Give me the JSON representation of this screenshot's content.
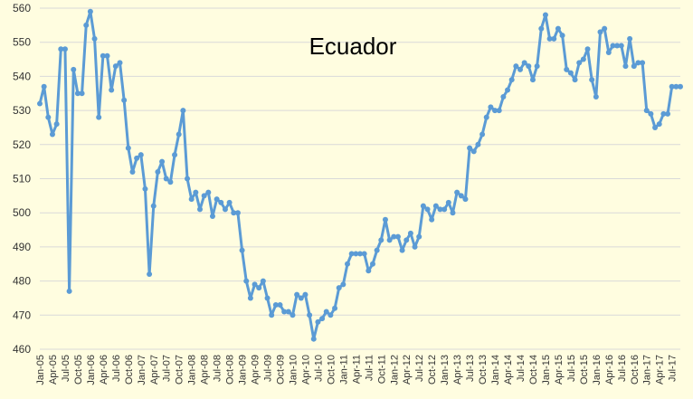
{
  "chart_data": {
    "type": "line",
    "title": "Ecuador",
    "xlabel": "",
    "ylabel": "",
    "ylim": [
      460,
      560
    ],
    "y_ticks": [
      460,
      470,
      480,
      490,
      500,
      510,
      520,
      530,
      540,
      550,
      560
    ],
    "grid": "horizontal",
    "legend": "none",
    "colors": {
      "series": "#5b9bd5",
      "grid": "#d9d9d9",
      "background": "#fffde0"
    },
    "x": [
      "Jan-05",
      "Feb-05",
      "Mar-05",
      "Apr-05",
      "May-05",
      "Jun-05",
      "Jul-05",
      "Aug-05",
      "Sep-05",
      "Oct-05",
      "Nov-05",
      "Dec-05",
      "Jan-06",
      "Feb-06",
      "Mar-06",
      "Apr-06",
      "May-06",
      "Jun-06",
      "Jul-06",
      "Aug-06",
      "Sep-06",
      "Oct-06",
      "Nov-06",
      "Dec-06",
      "Jan-07",
      "Feb-07",
      "Mar-07",
      "Apr-07",
      "May-07",
      "Jun-07",
      "Jul-07",
      "Aug-07",
      "Sep-07",
      "Oct-07",
      "Nov-07",
      "Dec-07",
      "Jan-08",
      "Feb-08",
      "Mar-08",
      "Apr-08",
      "May-08",
      "Jun-08",
      "Jul-08",
      "Aug-08",
      "Sep-08",
      "Oct-08",
      "Nov-08",
      "Dec-08",
      "Jan-09",
      "Feb-09",
      "Mar-09",
      "Apr-09",
      "May-09",
      "Jun-09",
      "Jul-09",
      "Aug-09",
      "Sep-09",
      "Oct-09",
      "Nov-09",
      "Dec-09",
      "Jan-10",
      "Feb-10",
      "Mar-10",
      "Apr-10",
      "May-10",
      "Jun-10",
      "Jul-10",
      "Aug-10",
      "Sep-10",
      "Oct-10",
      "Nov-10",
      "Dec-10",
      "Jan-11",
      "Feb-11",
      "Mar-11",
      "Apr-11",
      "May-11",
      "Jun-11",
      "Jul-11",
      "Aug-11",
      "Sep-11",
      "Oct-11",
      "Nov-11",
      "Dec-11",
      "Jan-12",
      "Feb-12",
      "Mar-12",
      "Apr-12",
      "May-12",
      "Jun-12",
      "Jul-12",
      "Aug-12",
      "Sep-12",
      "Oct-12",
      "Nov-12",
      "Dec-12",
      "Jan-13",
      "Feb-13",
      "Mar-13",
      "Apr-13",
      "May-13",
      "Jun-13",
      "Jul-13",
      "Aug-13",
      "Sep-13",
      "Oct-13",
      "Nov-13",
      "Dec-13",
      "Jan-14",
      "Feb-14",
      "Mar-14",
      "Apr-14",
      "May-14",
      "Jun-14",
      "Jul-14",
      "Aug-14",
      "Sep-14",
      "Oct-14",
      "Nov-14",
      "Dec-14",
      "Jan-15",
      "Feb-15",
      "Mar-15",
      "Apr-15",
      "May-15",
      "Jun-15",
      "Jul-15",
      "Aug-15",
      "Sep-15",
      "Oct-15",
      "Nov-15",
      "Dec-15",
      "Jan-16",
      "Feb-16",
      "Mar-16",
      "Apr-16",
      "May-16",
      "Jun-16",
      "Jul-16",
      "Aug-16",
      "Sep-16",
      "Oct-16",
      "Nov-16",
      "Dec-16",
      "Jan-17",
      "Feb-17",
      "Mar-17",
      "Apr-17",
      "May-17",
      "Jun-17",
      "Jul-17",
      "Aug-17",
      "Sep-17"
    ],
    "x_tick_labels": [
      "Jan-05",
      "Apr-05",
      "Jul-05",
      "Oct-05",
      "Jan-06",
      "Apr-06",
      "Jul-06",
      "Oct-06",
      "Jan-07",
      "Apr-07",
      "Jul-07",
      "Oct-07",
      "Jan-08",
      "Apr-08",
      "Jul-08",
      "Oct-08",
      "Jan-09",
      "Apr-09",
      "Jul-09",
      "Oct-09",
      "Jan-10",
      "Apr-10",
      "Jul-10",
      "Oct-10",
      "Jan-11",
      "Apr-11",
      "Jul-11",
      "Oct-11",
      "Jan-12",
      "Apr-12",
      "Jul-12",
      "Oct-12",
      "Jan-13",
      "Apr-13",
      "Jul-13",
      "Oct-13",
      "Jan-14",
      "Apr-14",
      "Jul-14",
      "Oct-14",
      "Jan-15",
      "Apr-15",
      "Jul-15",
      "Oct-15",
      "Jan-16",
      "Apr-16",
      "Jul-16",
      "Oct-16",
      "Jan-17",
      "Apr-17",
      "Jul-17"
    ],
    "series": [
      {
        "values": [
          532,
          537,
          528,
          523,
          526,
          548,
          548,
          477,
          542,
          535,
          535,
          555,
          559,
          551,
          528,
          546,
          546,
          536,
          543,
          544,
          533,
          519,
          512,
          516,
          517,
          507,
          482,
          502,
          512,
          515,
          510,
          509,
          517,
          523,
          530,
          510,
          504,
          506,
          501,
          505,
          506,
          499,
          504,
          503,
          501,
          503,
          500,
          500,
          489,
          480,
          475,
          479,
          478,
          480,
          475,
          470,
          473,
          473,
          471,
          471,
          470,
          476,
          475,
          476,
          470,
          463,
          468,
          469,
          471,
          470,
          472,
          478,
          479,
          485,
          488,
          488,
          488,
          488,
          483,
          485,
          489,
          492,
          498,
          492,
          493,
          493,
          489,
          492,
          494,
          490,
          493,
          502,
          501,
          498,
          502,
          501,
          501,
          503,
          500,
          506,
          505,
          504,
          519,
          518,
          520,
          523,
          528,
          531,
          530,
          530,
          534,
          536,
          539,
          543,
          542,
          544,
          543,
          539,
          543,
          554,
          558,
          551,
          551,
          554,
          552,
          542,
          541,
          539,
          544,
          545,
          548,
          539,
          534,
          553,
          554,
          547,
          549,
          549,
          549,
          543,
          551,
          543,
          544,
          544,
          530,
          529,
          525,
          526,
          529,
          529,
          537,
          537,
          537
        ]
      }
    ]
  }
}
